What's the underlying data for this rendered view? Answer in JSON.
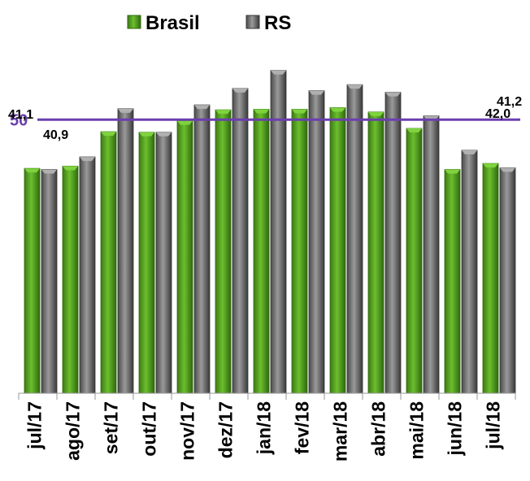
{
  "chart_data": {
    "type": "bar",
    "categories": [
      "jul/17",
      "ago/17",
      "set/17",
      "out/17",
      "nov/17",
      "dez/17",
      "jan/18",
      "fev/18",
      "mar/18",
      "abr/18",
      "mai/18",
      "jun/18",
      "jul/18"
    ],
    "series": [
      {
        "name": "Brasil",
        "color": "#4f9a1e",
        "values": [
          41.1,
          41.5,
          47.8,
          47.7,
          49.8,
          51.8,
          51.9,
          51.9,
          52.2,
          51.4,
          48.4,
          40.9,
          42.0
        ]
      },
      {
        "name": "RS",
        "color": "#5c5c5c",
        "values": [
          40.9,
          43.2,
          52.0,
          47.7,
          52.7,
          55.7,
          59.0,
          55.3,
          56.4,
          55.0,
          50.7,
          44.4,
          41.2
        ]
      }
    ],
    "data_labels": {
      "brasil_first": "41,1",
      "rs_first": "40,9",
      "brasil_last": "42,0",
      "rs_last": "41,2"
    },
    "reference_line": {
      "value": 50,
      "label": "50",
      "color": "#6a3fae"
    },
    "ylim": [
      0,
      64
    ],
    "legend_position": "top"
  }
}
